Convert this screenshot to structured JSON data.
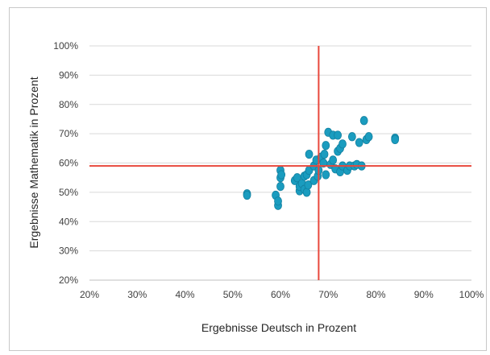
{
  "chart_data": {
    "type": "scatter",
    "xlabel": "Ergebnisse Deutsch in Prozent",
    "ylabel": "Ergebnisse Mathematik in Prozent",
    "xlim": [
      20,
      100
    ],
    "ylim": [
      20,
      100
    ],
    "xticks": [
      "20%",
      "30%",
      "40%",
      "50%",
      "60%",
      "70%",
      "80%",
      "90%",
      "100%"
    ],
    "yticks": [
      "20%",
      "30%",
      "40%",
      "50%",
      "60%",
      "70%",
      "80%",
      "90%",
      "100%"
    ],
    "grid": "horizontal",
    "reference_lines": {
      "x": 68,
      "y": 59
    },
    "colors": {
      "points": "#1a9cbf",
      "point_edge": "#1380a0",
      "reference": "#e8483c",
      "grid": "#d9d9d9"
    },
    "points": [
      {
        "x": 53,
        "y": 49.5
      },
      {
        "x": 53,
        "y": 49
      },
      {
        "x": 59,
        "y": 49
      },
      {
        "x": 59.5,
        "y": 45.5
      },
      {
        "x": 59.5,
        "y": 47
      },
      {
        "x": 60,
        "y": 52
      },
      {
        "x": 60,
        "y": 55
      },
      {
        "x": 60,
        "y": 57.5
      },
      {
        "x": 60.2,
        "y": 56
      },
      {
        "x": 63,
        "y": 54
      },
      {
        "x": 63.5,
        "y": 55
      },
      {
        "x": 64,
        "y": 50.5
      },
      {
        "x": 64,
        "y": 52
      },
      {
        "x": 64.5,
        "y": 53
      },
      {
        "x": 65,
        "y": 51
      },
      {
        "x": 65,
        "y": 55.5
      },
      {
        "x": 65.5,
        "y": 50
      },
      {
        "x": 65.5,
        "y": 56
      },
      {
        "x": 65.8,
        "y": 52.5
      },
      {
        "x": 66,
        "y": 57.5
      },
      {
        "x": 66,
        "y": 63
      },
      {
        "x": 67,
        "y": 54
      },
      {
        "x": 67,
        "y": 59
      },
      {
        "x": 67.5,
        "y": 61
      },
      {
        "x": 67.8,
        "y": 55.5
      },
      {
        "x": 68,
        "y": 57.5
      },
      {
        "x": 68.5,
        "y": 62
      },
      {
        "x": 69,
        "y": 60
      },
      {
        "x": 69.2,
        "y": 63
      },
      {
        "x": 69.5,
        "y": 66
      },
      {
        "x": 69.5,
        "y": 56
      },
      {
        "x": 70,
        "y": 70.5
      },
      {
        "x": 70.5,
        "y": 59.5
      },
      {
        "x": 71,
        "y": 69.5
      },
      {
        "x": 71,
        "y": 61
      },
      {
        "x": 71.5,
        "y": 58
      },
      {
        "x": 72,
        "y": 64
      },
      {
        "x": 72,
        "y": 69.5
      },
      {
        "x": 72.5,
        "y": 65
      },
      {
        "x": 72.5,
        "y": 57
      },
      {
        "x": 73,
        "y": 59
      },
      {
        "x": 73,
        "y": 66.5
      },
      {
        "x": 74,
        "y": 57.5
      },
      {
        "x": 74.5,
        "y": 59
      },
      {
        "x": 75,
        "y": 69
      },
      {
        "x": 75.5,
        "y": 59
      },
      {
        "x": 76,
        "y": 59.5
      },
      {
        "x": 76.5,
        "y": 67
      },
      {
        "x": 77,
        "y": 59
      },
      {
        "x": 77.5,
        "y": 74.5
      },
      {
        "x": 78,
        "y": 68
      },
      {
        "x": 78.5,
        "y": 69
      },
      {
        "x": 84,
        "y": 68.5
      },
      {
        "x": 84,
        "y": 68
      }
    ]
  }
}
